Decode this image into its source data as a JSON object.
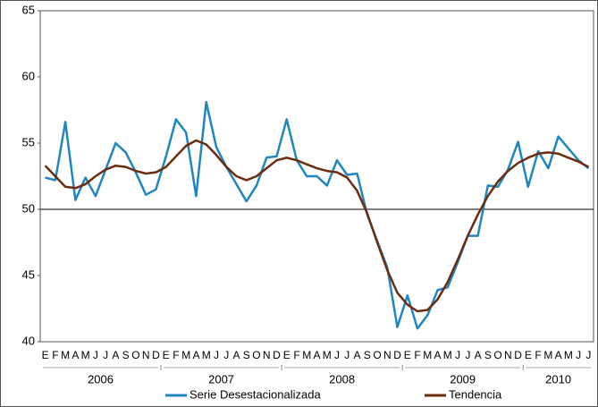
{
  "chart_data": {
    "type": "line",
    "categories": [
      "E",
      "F",
      "M",
      "A",
      "M",
      "J",
      "J",
      "A",
      "S",
      "O",
      "N",
      "D",
      "E",
      "F",
      "M",
      "A",
      "M",
      "J",
      "J",
      "A",
      "S",
      "O",
      "N",
      "D",
      "E",
      "F",
      "M",
      "A",
      "M",
      "J",
      "J",
      "A",
      "S",
      "O",
      "N",
      "D",
      "E",
      "F",
      "M",
      "A",
      "M",
      "J",
      "J",
      "A",
      "S",
      "O",
      "N",
      "D",
      "E",
      "F",
      "M",
      "A",
      "M",
      "J",
      "J"
    ],
    "year_labels": [
      "2006",
      "2007",
      "2008",
      "2009",
      "2010"
    ],
    "series": [
      {
        "name": "Serie Desestacionalizada",
        "color": "#1f86c0",
        "values": [
          52.4,
          52.2,
          56.6,
          50.7,
          52.4,
          51.0,
          53.0,
          55.0,
          54.3,
          52.8,
          51.1,
          51.5,
          54.0,
          56.8,
          55.8,
          51.0,
          58.1,
          54.7,
          53.2,
          51.9,
          50.6,
          51.8,
          53.9,
          54.0,
          56.8,
          53.7,
          52.5,
          52.5,
          51.8,
          53.7,
          52.6,
          52.7,
          49.6,
          47.6,
          45.6,
          41.1,
          43.5,
          41.0,
          42.0,
          43.9,
          44.1,
          46.0,
          48.0,
          48.0,
          51.8,
          51.7,
          53.0,
          55.1,
          51.7,
          54.4,
          53.1,
          55.5,
          54.6,
          53.7,
          53.1
        ]
      },
      {
        "name": "Tendencia",
        "color": "#6b2d0f",
        "values": [
          53.3,
          52.5,
          51.7,
          51.6,
          51.9,
          52.5,
          53.0,
          53.3,
          53.2,
          52.9,
          52.7,
          52.8,
          53.2,
          54.0,
          54.8,
          55.2,
          54.9,
          54.1,
          53.2,
          52.5,
          52.2,
          52.5,
          53.1,
          53.7,
          53.9,
          53.7,
          53.4,
          53.1,
          52.9,
          52.8,
          52.4,
          51.4,
          49.7,
          47.5,
          45.4,
          43.7,
          42.8,
          42.3,
          42.4,
          43.2,
          44.5,
          46.2,
          48.0,
          49.6,
          51.0,
          52.1,
          52.9,
          53.5,
          53.9,
          54.2,
          54.3,
          54.2,
          53.9,
          53.6,
          53.2
        ]
      }
    ],
    "ylim": [
      40,
      65
    ],
    "yticks": [
      40,
      45,
      50,
      55,
      60,
      65
    ],
    "hline": 50,
    "legend": "bottom"
  }
}
